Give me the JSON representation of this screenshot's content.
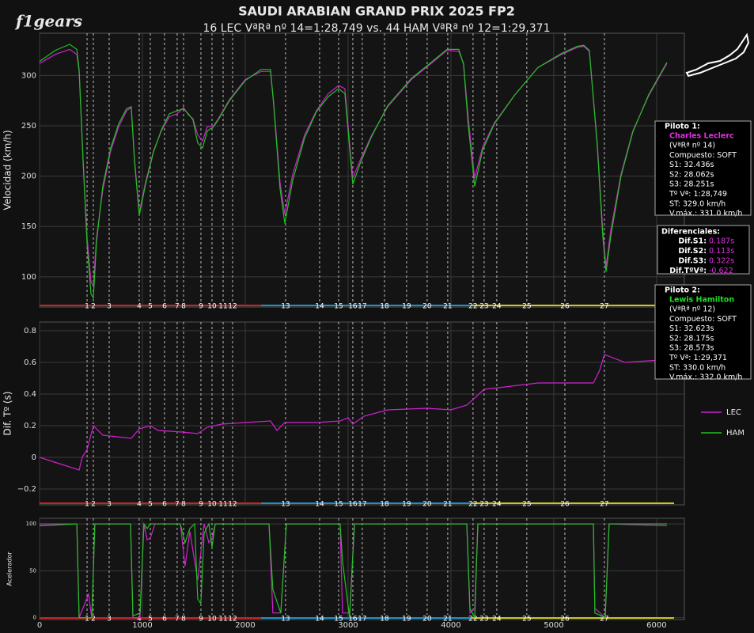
{
  "title": "SAUDI ARABIAN GRAND PRIX 2025 FP2",
  "subtitle": "16 LEC VªRª nº  14=1:28,749 vs. 44 HAM VªRª nº  12=1:29,371",
  "logo": "f1gears",
  "corners": {
    "distance": [
      462,
      523,
      677,
      969,
      1077,
      1215,
      1338,
      1400,
      1569,
      1677,
      1785,
      1877,
      2392,
      2723,
      2908,
      3046,
      3138,
      3354,
      3569,
      3769,
      3969,
      4215,
      4323,
      4446,
      4738,
      5108,
      5492
    ],
    "numbers": [
      1,
      2,
      3,
      4,
      5,
      6,
      7,
      8,
      9,
      10,
      11,
      12,
      13,
      14,
      15,
      16,
      17,
      18,
      19,
      20,
      21,
      22,
      23,
      24,
      25,
      26,
      27
    ]
  },
  "sectors": [
    {
      "start": 0,
      "end": 2154,
      "color": "#cc2222"
    },
    {
      "start": 2154,
      "end": 4208,
      "color": "#1e90c8"
    },
    {
      "start": 4208,
      "end": 6170,
      "color": "#c8c81e"
    }
  ],
  "chart_data": [
    {
      "type": "line",
      "y_label": "Velocidad (km/h)",
      "xlim": [
        0,
        6270
      ],
      "ylim": [
        70,
        342
      ],
      "yticks": [
        100,
        150,
        200,
        250,
        300
      ],
      "grid": true,
      "x": [
        0,
        154,
        292,
        362,
        385,
        423,
        462,
        500,
        523,
        554,
        615,
        692,
        769,
        846,
        892,
        923,
        969,
        1031,
        1108,
        1185,
        1262,
        1338,
        1400,
        1446,
        1492,
        1538,
        1585,
        1631,
        1692,
        1738,
        1846,
        2000,
        2154,
        2246,
        2277,
        2338,
        2385,
        2462,
        2577,
        2692,
        2808,
        2908,
        2969,
        3015,
        3046,
        3123,
        3231,
        3385,
        3615,
        3808,
        3962,
        4077,
        4123,
        4169,
        4231,
        4308,
        4423,
        4615,
        4846,
        5077,
        5231,
        5292,
        5346,
        5423,
        5477,
        5508,
        5554,
        5654,
        5769,
        5923,
        6100
      ],
      "series": [
        {
          "name": "LEC",
          "color": "#d020d0",
          "values": [
            312,
            321,
            326,
            321,
            304,
            217,
            139,
            95,
            91,
            139,
            186,
            225,
            249,
            265,
            268,
            217,
            164,
            194,
            225,
            245,
            259,
            262,
            268,
            261,
            257,
            241,
            235,
            249,
            250,
            257,
            276,
            296,
            304,
            304,
            272,
            194,
            162,
            202,
            241,
            265,
            282,
            290,
            287,
            233,
            198,
            217,
            241,
            269,
            296,
            312,
            325,
            324,
            312,
            257,
            198,
            229,
            253,
            280,
            308,
            321,
            328,
            329,
            324,
            233,
            146,
            110,
            146,
            202,
            245,
            280,
            312
          ]
        },
        {
          "name": "HAM",
          "color": "#22c022",
          "values": [
            314,
            325,
            331,
            326,
            306,
            215,
            132,
            83,
            79,
            135,
            190,
            228,
            252,
            267,
            269,
            215,
            161,
            192,
            224,
            246,
            262,
            265,
            267,
            262,
            256,
            233,
            228,
            245,
            249,
            256,
            275,
            295,
            306,
            306,
            270,
            188,
            153,
            196,
            238,
            264,
            279,
            287,
            282,
            228,
            192,
            214,
            240,
            270,
            297,
            313,
            326,
            326,
            311,
            250,
            190,
            226,
            252,
            280,
            308,
            322,
            329,
            330,
            325,
            230,
            140,
            105,
            140,
            200,
            244,
            281,
            313
          ]
        }
      ]
    },
    {
      "type": "line",
      "y_label": "Dif. Tº (s)",
      "xlim": [
        0,
        6270
      ],
      "ylim": [
        -0.3,
        0.855
      ],
      "yticks": [
        {
          "value": -0.2,
          "label": "−0.2"
        },
        0,
        0.2,
        0.4,
        0.6,
        0.8
      ],
      "grid": true,
      "x": [
        0,
        385,
        415,
        462,
        523,
        615,
        892,
        969,
        1077,
        1154,
        1385,
        1538,
        1631,
        1769,
        2000,
        2246,
        2308,
        2385,
        2692,
        2923,
        3000,
        3046,
        3154,
        3385,
        3769,
        4000,
        4154,
        4323,
        4462,
        4846,
        5385,
        5446,
        5492,
        5692,
        6154
      ],
      "series": [
        {
          "color": "#d020d0",
          "values": [
            0,
            -0.08,
            0,
            0.05,
            0.2,
            0.14,
            0.12,
            0.18,
            0.2,
            0.17,
            0.16,
            0.15,
            0.19,
            0.21,
            0.22,
            0.23,
            0.17,
            0.22,
            0.22,
            0.23,
            0.25,
            0.21,
            0.26,
            0.3,
            0.31,
            0.3,
            0.33,
            0.43,
            0.44,
            0.47,
            0.47,
            0.55,
            0.65,
            0.6,
            0.62
          ]
        }
      ]
    },
    {
      "type": "line",
      "y_label": "Acelerador",
      "xlim": [
        0,
        6270
      ],
      "ylim": [
        -2,
        106
      ],
      "yticks": [
        0,
        50,
        100
      ],
      "xticks": [
        0,
        1000,
        2000,
        3000,
        4000,
        5000,
        6000
      ],
      "grid": true,
      "x": [
        0,
        362,
        385,
        477,
        508,
        538,
        885,
        908,
        977,
        1015,
        1046,
        1077,
        1123,
        1369,
        1415,
        1462,
        1508,
        1538,
        1569,
        1600,
        1646,
        1677,
        1708,
        2231,
        2269,
        2346,
        2400,
        2923,
        2946,
        3015,
        3062,
        4154,
        4185,
        4231,
        4262,
        5385,
        5400,
        5500,
        5538,
        6100
      ],
      "series": [
        {
          "color": "#d020d0",
          "values": [
            100,
            100,
            0,
            25,
            0,
            100,
            100,
            0,
            0,
            100,
            83,
            85,
            100,
            100,
            55,
            92,
            60,
            40,
            70,
            100,
            80,
            85,
            100,
            100,
            5,
            5,
            100,
            100,
            5,
            5,
            100,
            100,
            5,
            10,
            100,
            100,
            10,
            0,
            100,
            98
          ]
        },
        {
          "color": "#22c022",
          "values": [
            98,
            100,
            0,
            0,
            0,
            100,
            100,
            2,
            5,
            100,
            95,
            100,
            100,
            100,
            80,
            95,
            100,
            20,
            15,
            90,
            100,
            75,
            100,
            100,
            30,
            5,
            100,
            100,
            60,
            0,
            100,
            100,
            10,
            0,
            100,
            100,
            5,
            0,
            100,
            100
          ]
        }
      ]
    }
  ],
  "info_panels": [
    {
      "title": "Piloto 1:",
      "driver": "Charles Leclerc",
      "driver_color": "#e030e0",
      "lines": [
        "(VªRª nº 14)",
        "Compuesto: SOFT",
        "S1: 32.436s",
        "S2: 28.062s",
        "S3: 28.251s",
        "Tº Vª: 1:28,749",
        "ST: 329.0 km/h",
        "V.máx.: 331.0 km/h"
      ]
    },
    {
      "title": "Piloto 2:",
      "driver": "Lewis Hamilton",
      "driver_color": "#22dd22",
      "lines": [
        "(VªRª nº 12)",
        "Compuesto: SOFT",
        "S1: 32.623s",
        "S2: 28.175s",
        "S3: 28.573s",
        "Tº Vª: 1:29,371",
        "ST: 330.0 km/h",
        "V.máx.: 332.0 km/h"
      ]
    }
  ],
  "differentials": {
    "title": "Diferenciales:",
    "color": "#e030e0",
    "rows": [
      {
        "label": "Dif.S1:",
        "value": "0.187s"
      },
      {
        "label": "Dif.S2:",
        "value": "0.113s"
      },
      {
        "label": "Dif.S3:",
        "value": "0.322s"
      },
      {
        "label": "Dif.TºVª:",
        "value": "-0.622"
      }
    ]
  }
}
